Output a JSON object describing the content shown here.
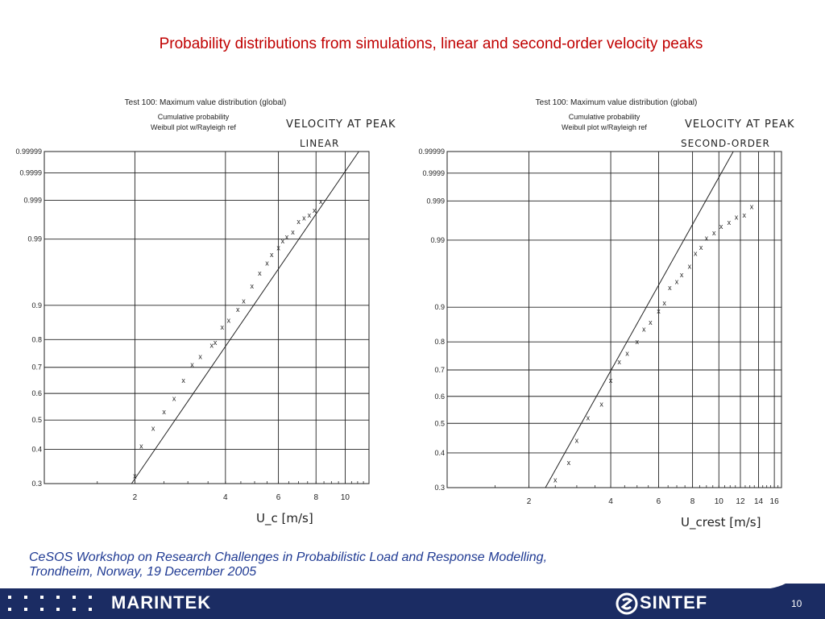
{
  "slide": {
    "title": "Probability distributions from simulations, linear and second-order velocity peaks",
    "footer_line1": "CeSOS Workshop on Research Challenges in Probabilistic Load and Response Modelling,",
    "footer_line2": "Trondheim, Norway, 19 December 2005",
    "brand_left": "MARINTEK",
    "brand_right": "SINTEF",
    "page_number": "10",
    "footer_color": "#1b2c63",
    "title_color": "#c00000",
    "footer_text_color": "#1f3a93"
  },
  "chart_data": [
    {
      "type": "scatter",
      "title": "Test 100: Maximum value distribution (global)",
      "subtitle_1": "Cumulative probability",
      "subtitle_2": "Weibull plot w/Rayleigh ref",
      "annotation_1": "VELOCITY AT PEAK",
      "annotation_2": "LINEAR",
      "xlabel": "U_c [m/s]",
      "x_scale": "log",
      "x_ticks": [
        2,
        4,
        6,
        8,
        10
      ],
      "y_scale": "weibull",
      "y_ticks": [
        "0.99999",
        "0.9999",
        "0.999",
        "0.99",
        "0.9",
        "0.8",
        "0.7",
        "0.6",
        "0.5",
        "0.4",
        "0.3"
      ],
      "marker": "x",
      "series": [
        {
          "x": [
            2.0,
            2.1,
            2.3,
            2.5,
            2.7,
            2.9,
            3.1,
            3.3,
            3.6,
            3.7,
            3.9,
            4.1,
            4.4,
            4.6,
            4.9,
            5.2,
            5.5,
            5.7,
            6.0,
            6.2,
            6.4,
            6.7,
            7.0,
            7.3,
            7.6,
            7.9,
            8.3
          ],
          "y": [
            0.32,
            0.41,
            0.47,
            0.53,
            0.58,
            0.65,
            0.71,
            0.74,
            0.78,
            0.79,
            0.84,
            0.86,
            0.89,
            0.91,
            0.94,
            0.96,
            0.972,
            0.98,
            0.985,
            0.989,
            0.991,
            0.993,
            0.996,
            0.9968,
            0.9973,
            0.998,
            0.9989
          ]
        }
      ],
      "reference_line": {
        "x": [
          1.95,
          11.1
        ],
        "y": [
          0.3,
          0.99999
        ]
      }
    },
    {
      "type": "scatter",
      "title": "Test 100: Maximum value distribution (global)",
      "subtitle_1": "Cumulative probability",
      "subtitle_2": "Weibull plot w/Rayleigh ref",
      "annotation_1": "VELOCITY AT PEAK",
      "annotation_2": "SECOND-ORDER",
      "xlabel": "U_crest [m/s]",
      "x_scale": "log",
      "x_ticks": [
        2,
        4,
        6,
        8,
        10,
        12,
        14,
        16
      ],
      "y_scale": "weibull",
      "y_ticks": [
        "0.99999",
        "0.9999",
        "0.999",
        "0.99",
        "0.9",
        "0.8",
        "0.7",
        "0.6",
        "0.5",
        "0.4",
        "0.3"
      ],
      "marker": "x",
      "series": [
        {
          "x": [
            2.5,
            2.8,
            3.0,
            3.3,
            3.7,
            4.0,
            4.3,
            4.6,
            5.0,
            5.3,
            5.6,
            6.0,
            6.3,
            6.6,
            7.0,
            7.3,
            7.8,
            8.2,
            8.6,
            9.0,
            9.6,
            10.2,
            10.9,
            11.6,
            12.4,
            13.2
          ],
          "y": [
            0.32,
            0.37,
            0.44,
            0.52,
            0.57,
            0.66,
            0.73,
            0.76,
            0.8,
            0.84,
            0.86,
            0.89,
            0.91,
            0.94,
            0.95,
            0.96,
            0.97,
            0.982,
            0.986,
            0.991,
            0.993,
            0.995,
            0.996,
            0.9971,
            0.9974,
            0.9985
          ]
        }
      ],
      "reference_line": {
        "x": [
          2.3,
          11.3
        ],
        "y": [
          0.3,
          0.99999
        ]
      }
    }
  ]
}
